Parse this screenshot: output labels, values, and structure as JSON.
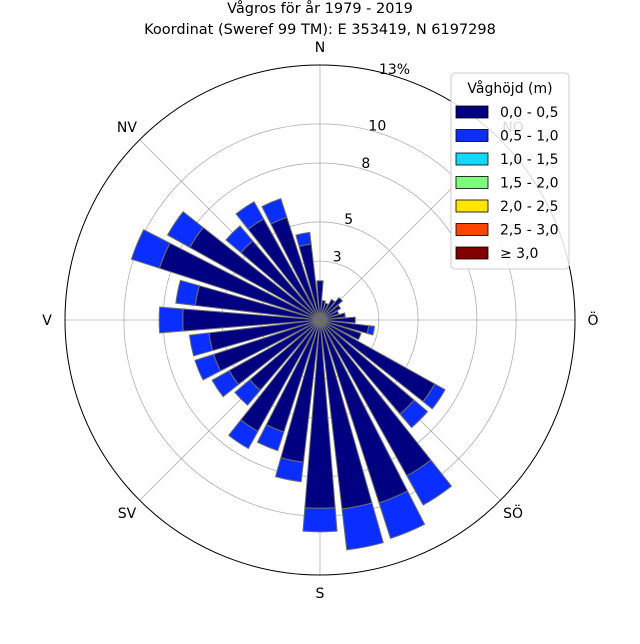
{
  "chart_data": {
    "type": "windrose",
    "title": "Vågros för år 1979 - 2019",
    "subtitle": "Koordinat (Sweref 99 TM): E 353419, N 6197298",
    "radial_unit": "%",
    "radial_max": 13,
    "radial_ticks": [
      3,
      5,
      8,
      10,
      13
    ],
    "radial_tick_labels": [
      "3",
      "5",
      "8",
      "10",
      "13%"
    ],
    "direction_labels": [
      {
        "label": "N",
        "angle_deg": 0
      },
      {
        "label": "NÖ",
        "angle_deg": 45
      },
      {
        "label": "Ö",
        "angle_deg": 90
      },
      {
        "label": "SÖ",
        "angle_deg": 135
      },
      {
        "label": "S",
        "angle_deg": 180
      },
      {
        "label": "SV",
        "angle_deg": 225
      },
      {
        "label": "V",
        "angle_deg": 270
      },
      {
        "label": "NV",
        "angle_deg": 315
      }
    ],
    "grid": true,
    "legend": {
      "title": "Våghöjd (m)",
      "placement": "top-right",
      "entries": [
        {
          "label": "0,0 - 0,5",
          "color": "#000080"
        },
        {
          "label": "0,5 - 1,0",
          "color": "#0a2eff"
        },
        {
          "label": "1,0 - 1,5",
          "color": "#12d8ff"
        },
        {
          "label": "1,5 - 2,0",
          "color": "#7cff7a"
        },
        {
          "label": "2,0 - 2,5",
          "color": "#ffe600"
        },
        {
          "label": "2,5 - 3,0",
          "color": "#ff4400"
        },
        {
          "label": "≥ 3,0",
          "color": "#800000"
        }
      ]
    },
    "sectors": [
      {
        "direction_deg": 0,
        "values": [
          2.0,
          0.0
        ]
      },
      {
        "direction_deg": 11.25,
        "values": [
          1.0,
          0.0
        ]
      },
      {
        "direction_deg": 22.5,
        "values": [
          0.9,
          0.0
        ]
      },
      {
        "direction_deg": 33.75,
        "values": [
          1.2,
          0.0
        ]
      },
      {
        "direction_deg": 45,
        "values": [
          1.5,
          0.0
        ]
      },
      {
        "direction_deg": 56.25,
        "values": [
          1.2,
          0.0
        ]
      },
      {
        "direction_deg": 67.5,
        "values": [
          1.0,
          0.0
        ]
      },
      {
        "direction_deg": 78.75,
        "values": [
          1.3,
          0.0
        ]
      },
      {
        "direction_deg": 90,
        "values": [
          1.8,
          0.0
        ]
      },
      {
        "direction_deg": 101.25,
        "values": [
          2.5,
          0.3
        ]
      },
      {
        "direction_deg": 112.5,
        "values": [
          2.2,
          0.0
        ]
      },
      {
        "direction_deg": 123.75,
        "values": [
          6.7,
          0.6
        ]
      },
      {
        "direction_deg": 135,
        "values": [
          6.3,
          0.9
        ]
      },
      {
        "direction_deg": 146.25,
        "values": [
          9.1,
          1.7
        ]
      },
      {
        "direction_deg": 157.5,
        "values": [
          9.8,
          1.9
        ]
      },
      {
        "direction_deg": 168.75,
        "values": [
          9.7,
          2.1
        ]
      },
      {
        "direction_deg": 180,
        "values": [
          9.6,
          1.2
        ]
      },
      {
        "direction_deg": 191.25,
        "values": [
          7.3,
          1.0
        ]
      },
      {
        "direction_deg": 202.5,
        "values": [
          6.0,
          1.0
        ]
      },
      {
        "direction_deg": 213.75,
        "values": [
          6.5,
          1.0
        ]
      },
      {
        "direction_deg": 225,
        "values": [
          4.7,
          1.0
        ]
      },
      {
        "direction_deg": 236.25,
        "values": [
          5.3,
          1.0
        ]
      },
      {
        "direction_deg": 247.5,
        "values": [
          5.7,
          1.0
        ]
      },
      {
        "direction_deg": 258.75,
        "values": [
          5.7,
          1.0
        ]
      },
      {
        "direction_deg": 270,
        "values": [
          7.0,
          1.2
        ]
      },
      {
        "direction_deg": 281.25,
        "values": [
          6.4,
          1.0
        ]
      },
      {
        "direction_deg": 292.5,
        "values": [
          8.6,
          1.5
        ]
      },
      {
        "direction_deg": 303.75,
        "values": [
          7.6,
          1.3
        ]
      },
      {
        "direction_deg": 315,
        "values": [
          5.3,
          1.0
        ]
      },
      {
        "direction_deg": 326.25,
        "values": [
          5.9,
          1.0
        ]
      },
      {
        "direction_deg": 337.5,
        "values": [
          5.5,
          1.0
        ]
      },
      {
        "direction_deg": 348.75,
        "values": [
          3.9,
          0.6
        ]
      }
    ]
  }
}
